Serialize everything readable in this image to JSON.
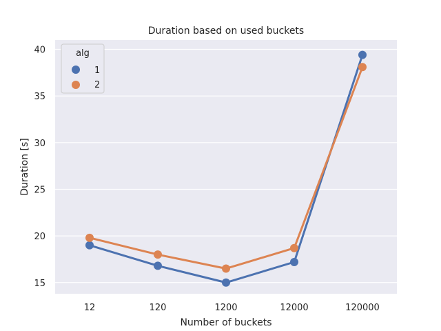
{
  "chart_data": {
    "type": "line",
    "title": "Duration based on used buckets",
    "xlabel": "Number of buckets",
    "ylabel": "Duration [s]",
    "categories": [
      "12",
      "120",
      "1200",
      "12000",
      "120000"
    ],
    "ylim": [
      13.8,
      41.0
    ],
    "yticks": [
      15,
      20,
      25,
      30,
      35,
      40
    ],
    "grid": true,
    "legend": {
      "title": "alg",
      "placement": "top-left"
    },
    "series": [
      {
        "name": "1",
        "color": "#4c72b0",
        "values": [
          19.0,
          16.8,
          15.0,
          17.2,
          39.4
        ]
      },
      {
        "name": "2",
        "color": "#dd8452",
        "values": [
          19.8,
          18.0,
          16.5,
          18.7,
          38.1
        ]
      }
    ]
  }
}
